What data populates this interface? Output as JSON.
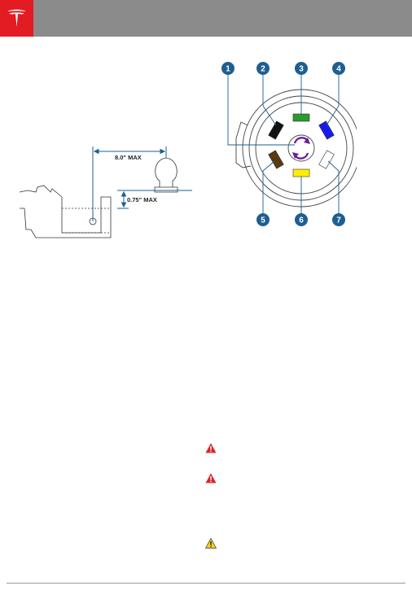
{
  "header": {
    "brand_icon": "tesla-logo-icon"
  },
  "hitch_diagram": {
    "max_length_label": "8.0\" MAX",
    "max_height_label": "0.75\" MAX"
  },
  "connector_diagram": {
    "pins": [
      {
        "number": "1",
        "color": "#6a1fa0"
      },
      {
        "number": "2",
        "color": "#111111"
      },
      {
        "number": "3",
        "color": "#2a9a2a"
      },
      {
        "number": "4",
        "color": "#1a1aee"
      },
      {
        "number": "5",
        "color": "#5a3a10"
      },
      {
        "number": "6",
        "color": "#ffee00"
      },
      {
        "number": "7",
        "color": "#ffffff"
      }
    ],
    "callout_color": "#1d5f93"
  },
  "warnings": [
    {
      "icon": "warning-red-icon"
    },
    {
      "icon": "warning-red-icon"
    },
    {
      "icon": "caution-yellow-icon"
    }
  ]
}
